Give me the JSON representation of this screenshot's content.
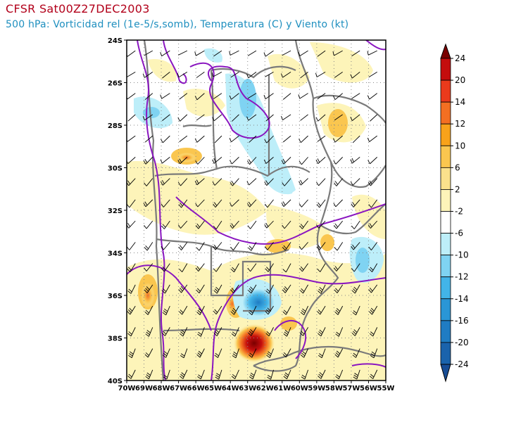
{
  "header": {
    "title": "CFSR Sat00Z27DEC2003",
    "subtitle": "500 hPa: Vorticidad rel (1e-5/s,somb), Temperatura (C) y Viento (kt)"
  },
  "map": {
    "lat_range": [
      -40,
      -24
    ],
    "lon_range": [
      -70,
      -55
    ],
    "lat_labels": [
      "24S",
      "26S",
      "28S",
      "30S",
      "32S",
      "34S",
      "36S",
      "38S",
      "40S"
    ],
    "lon_labels": [
      "70W",
      "69W",
      "68W",
      "67W",
      "66W",
      "65W",
      "64W",
      "63W",
      "62W",
      "61W",
      "60W",
      "59W",
      "58W",
      "57W",
      "56W",
      "55W"
    ],
    "features": [
      {
        "name": "negative-vorticity-center",
        "lon": -62.7,
        "lat": -36.3,
        "sign": "negative"
      },
      {
        "name": "positive-vorticity-center",
        "lon": -62.7,
        "lat": -38.2,
        "sign": "positive"
      }
    ]
  },
  "colorbar": {
    "labels": [
      "24",
      "20",
      "14",
      "12",
      "10",
      "6",
      "2",
      "-2",
      "-6",
      "-10",
      "-12",
      "-14",
      "-16",
      "-20",
      "-24"
    ],
    "colors": [
      "#7a0000",
      "#c40d0d",
      "#ea3a1c",
      "#f36f22",
      "#f8a21a",
      "#fac64f",
      "#fbe18c",
      "#fdf4b9",
      "#ffffff",
      "#bdeef9",
      "#7fd3f2",
      "#42b4e8",
      "#2a96d6",
      "#1f7cc3",
      "#1a63ac",
      "#184d95"
    ]
  }
}
